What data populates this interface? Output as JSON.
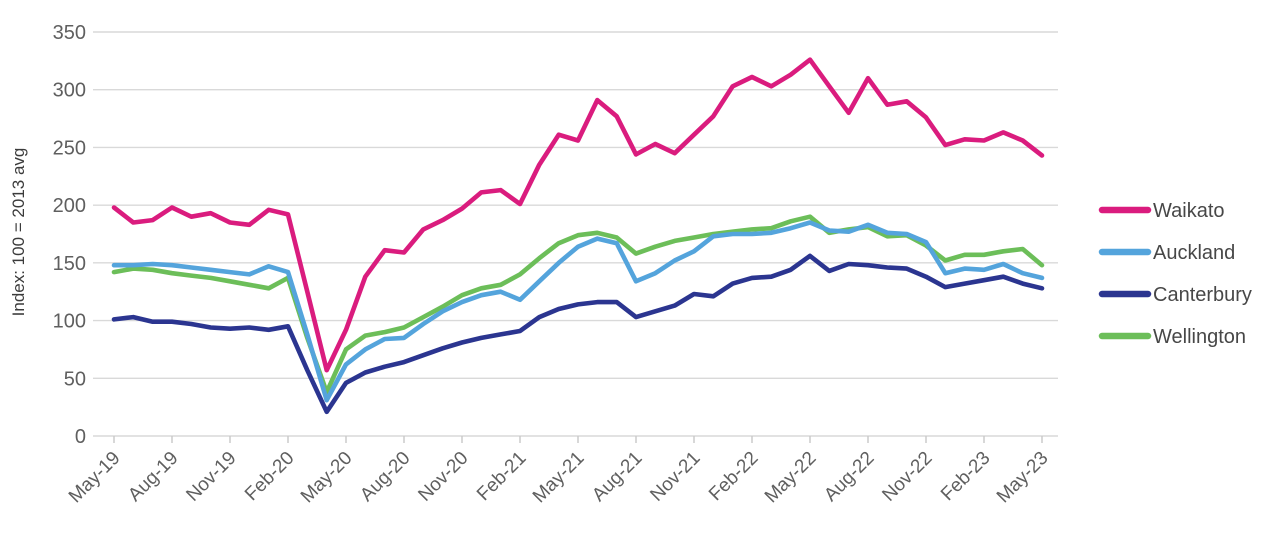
{
  "chart_data": {
    "type": "line",
    "title": "",
    "xlabel": "",
    "ylabel": "Index: 100 = 2013 avg",
    "ylim": [
      0,
      350
    ],
    "yticks": [
      0,
      50,
      100,
      150,
      200,
      250,
      300,
      350
    ],
    "x_tick_every": 3,
    "grid": "horizontal",
    "legend_position": "right",
    "grid_color": "#d9d9d9",
    "tick_color": "#c8c8c8",
    "axis_text_color": "#5f5f5f",
    "legend_text_color": "#474747",
    "x": [
      "May-19",
      "Jun-19",
      "Jul-19",
      "Aug-19",
      "Sep-19",
      "Oct-19",
      "Nov-19",
      "Dec-19",
      "Jan-20",
      "Feb-20",
      "Mar-20",
      "Apr-20",
      "May-20",
      "Jun-20",
      "Jul-20",
      "Aug-20",
      "Sep-20",
      "Oct-20",
      "Nov-20",
      "Dec-20",
      "Jan-21",
      "Feb-21",
      "Mar-21",
      "Apr-21",
      "May-21",
      "Jun-21",
      "Jul-21",
      "Aug-21",
      "Sep-21",
      "Oct-21",
      "Nov-21",
      "Dec-21",
      "Jan-22",
      "Feb-22",
      "Mar-22",
      "Apr-22",
      "May-22",
      "Jun-22",
      "Jul-22",
      "Aug-22",
      "Sep-22",
      "Oct-22",
      "Nov-22",
      "Dec-22",
      "Jan-23",
      "Feb-23",
      "Mar-23",
      "Apr-23",
      "May-23"
    ],
    "x_tick_labels": [
      "May-19",
      "Aug-19",
      "Nov-19",
      "Feb-20",
      "May-20",
      "Aug-20",
      "Nov-20",
      "Feb-21",
      "May-21",
      "Aug-21",
      "Nov-21",
      "Feb-22",
      "May-22",
      "Aug-22",
      "Nov-22",
      "Feb-23",
      "May-23"
    ],
    "series": [
      {
        "name": "Waikato",
        "color": "#da1c7e",
        "values": [
          198,
          185,
          187,
          198,
          190,
          193,
          185,
          183,
          196,
          192,
          125,
          57,
          92,
          138,
          161,
          159,
          179,
          187,
          197,
          211,
          213,
          201,
          235,
          261,
          256,
          291,
          277,
          244,
          253,
          245,
          261,
          277,
          303,
          311,
          303,
          313,
          326,
          303,
          280,
          310,
          287,
          290,
          276,
          252,
          257,
          256,
          263,
          256,
          243
        ]
      },
      {
        "name": "Auckland",
        "color": "#54a4dc",
        "values": [
          148,
          148,
          149,
          148,
          146,
          144,
          142,
          140,
          147,
          142,
          88,
          31,
          62,
          75,
          84,
          85,
          97,
          108,
          116,
          122,
          125,
          118,
          134,
          150,
          164,
          171,
          167,
          134,
          141,
          152,
          160,
          173,
          175,
          175,
          176,
          180,
          185,
          178,
          177,
          183,
          176,
          175,
          168,
          141,
          145,
          144,
          149,
          141,
          137
        ]
      },
      {
        "name": "Canterbury",
        "color": "#2b3590",
        "values": [
          101,
          103,
          99,
          99,
          97,
          94,
          93,
          94,
          92,
          95,
          57,
          21,
          46,
          55,
          60,
          64,
          70,
          76,
          81,
          85,
          88,
          91,
          103,
          110,
          114,
          116,
          116,
          103,
          108,
          113,
          123,
          121,
          132,
          137,
          138,
          144,
          156,
          143,
          149,
          148,
          146,
          145,
          138,
          129,
          132,
          135,
          138,
          132,
          128
        ]
      },
      {
        "name": "Wellington",
        "color": "#6cbe59",
        "values": [
          142,
          145,
          144,
          141,
          139,
          137,
          134,
          131,
          128,
          137,
          85,
          38,
          75,
          87,
          90,
          94,
          103,
          112,
          122,
          128,
          131,
          140,
          154,
          167,
          174,
          176,
          172,
          158,
          164,
          169,
          172,
          175,
          177,
          179,
          180,
          186,
          190,
          176,
          179,
          181,
          173,
          174,
          165,
          152,
          157,
          157,
          160,
          162,
          148
        ]
      }
    ]
  }
}
